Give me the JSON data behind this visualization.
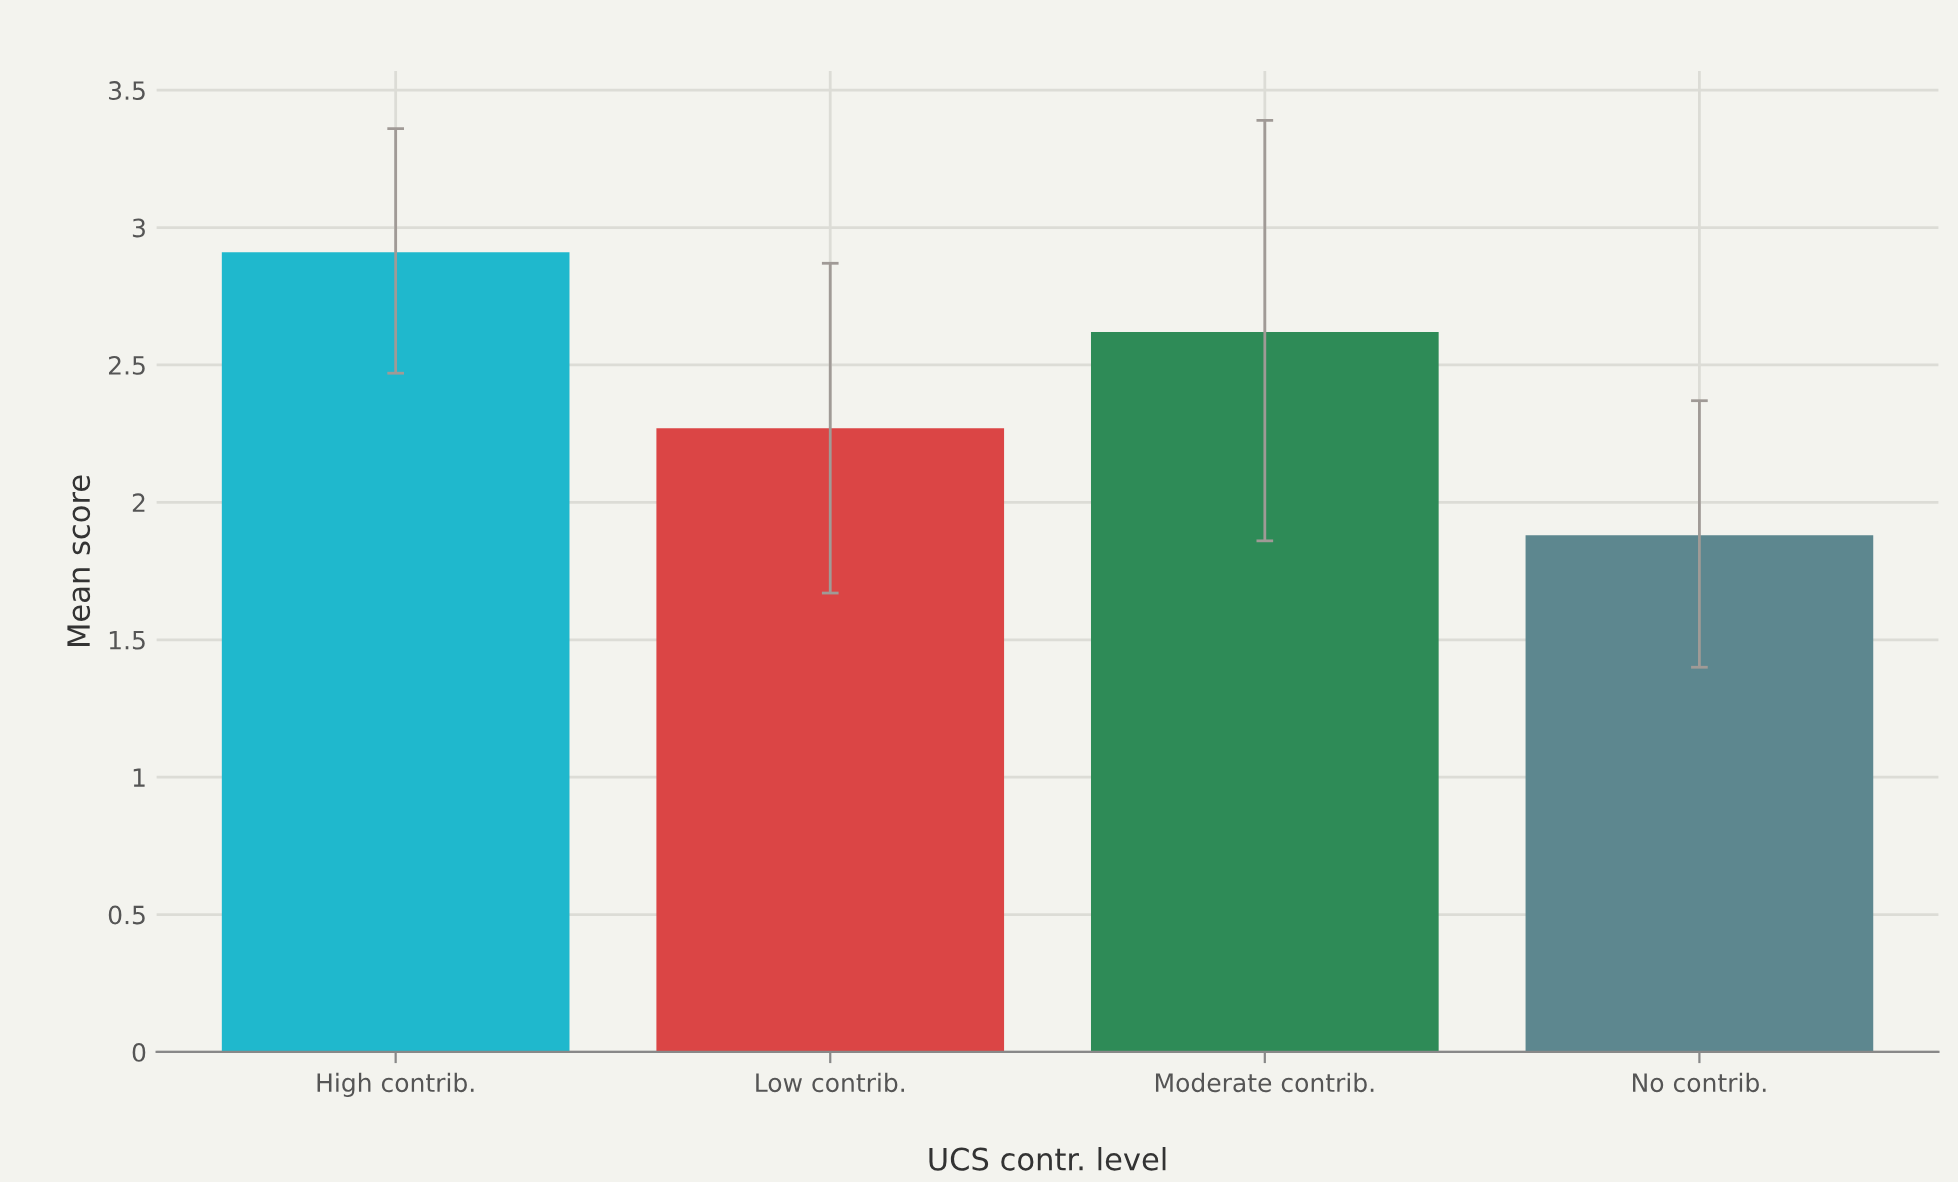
{
  "chart_data": {
    "type": "bar",
    "xlabel": "UCS contr. level",
    "ylabel": "Mean score",
    "categories": [
      "High contrib.",
      "Low contrib.",
      "Moderate contrib.",
      "No contrib."
    ],
    "values": [
      2.91,
      2.27,
      2.62,
      1.88
    ],
    "colors": [
      "#1fb8cd",
      "#db4545",
      "#2e8b57",
      "#5d878f"
    ],
    "errors": [
      [
        2.47,
        3.36
      ],
      [
        1.67,
        2.87
      ],
      [
        1.86,
        3.39
      ],
      [
        1.4,
        2.37
      ]
    ],
    "ylim": [
      0,
      3.57
    ],
    "yticks": [
      0,
      0.5,
      1,
      1.5,
      2,
      2.5,
      3,
      3.5
    ],
    "grid": true
  }
}
